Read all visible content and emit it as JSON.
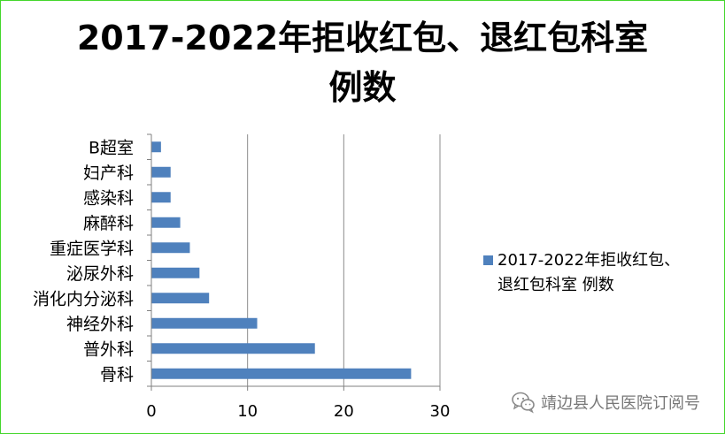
{
  "chart_data": {
    "type": "bar",
    "orientation": "horizontal",
    "title_lines": [
      "2017-2022年拒收红包、退红包科室",
      "例数"
    ],
    "categories": [
      "骨科",
      "普外科",
      "神经外科",
      "消化内分泌科",
      "泌尿外科",
      "重症医学科",
      "麻醉科",
      "感染科",
      "妇产科",
      "B超室"
    ],
    "series": [
      {
        "name": "2017-2022年拒收红包、退红包科室 例数",
        "legend_lines": [
          "2017-2022年拒收红包、",
          "退红包科室 例数"
        ],
        "values": [
          27,
          17,
          11,
          6,
          5,
          4,
          3,
          2,
          2,
          1
        ]
      }
    ],
    "xlim": [
      0,
      30
    ],
    "xticks": [
      0,
      10,
      20,
      30
    ],
    "grid": "vertical",
    "legend_position": "right"
  },
  "colors": {
    "bar": "#4f81bd",
    "grid": "#8c8c8c",
    "axis": "#808080",
    "frame": "#44d62c"
  },
  "watermark": {
    "text": "靖边县人民医院订阅号",
    "icon": "wechat-icon"
  }
}
